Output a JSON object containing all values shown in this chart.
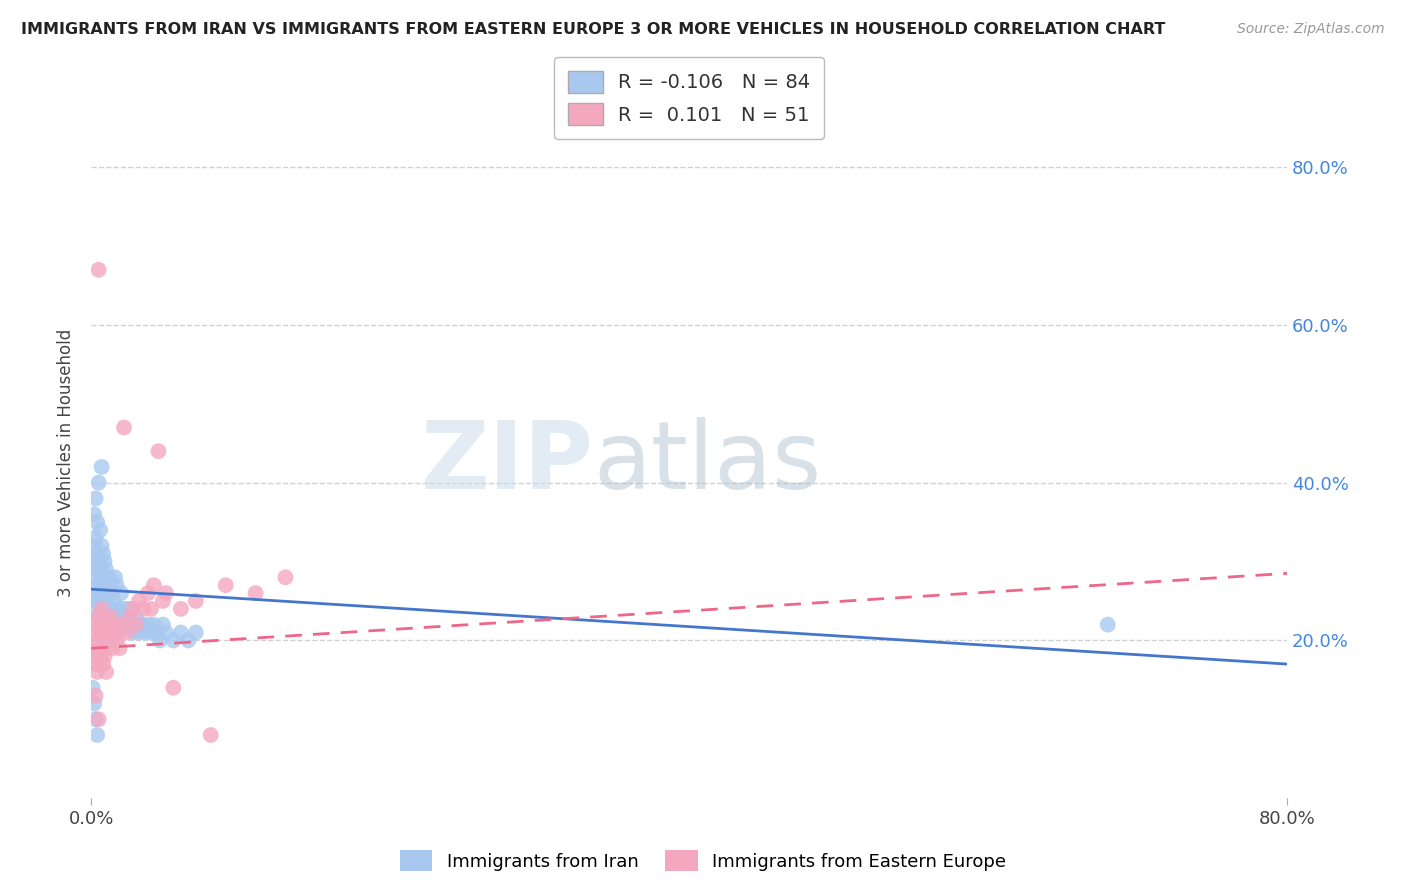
{
  "title": "IMMIGRANTS FROM IRAN VS IMMIGRANTS FROM EASTERN EUROPE 3 OR MORE VEHICLES IN HOUSEHOLD CORRELATION CHART",
  "source": "Source: ZipAtlas.com",
  "ylabel": "3 or more Vehicles in Household",
  "legend_R1": "-0.106",
  "legend_N1": "84",
  "legend_R2": "0.101",
  "legend_N2": "51",
  "color_iran": "#A8C8F0",
  "color_east": "#F4A8C0",
  "color_iran_line": "#4477CC",
  "color_east_line": "#EE6688",
  "watermark_zip": "ZIP",
  "watermark_atlas": "atlas",
  "background_color": "#FFFFFF",
  "x_range": [
    0.0,
    0.8
  ],
  "y_range": [
    0.0,
    0.85
  ],
  "iran_x": [
    0.001,
    0.001,
    0.002,
    0.002,
    0.002,
    0.003,
    0.003,
    0.003,
    0.003,
    0.004,
    0.004,
    0.004,
    0.004,
    0.005,
    0.005,
    0.005,
    0.005,
    0.006,
    0.006,
    0.006,
    0.006,
    0.007,
    0.007,
    0.007,
    0.007,
    0.007,
    0.008,
    0.008,
    0.008,
    0.008,
    0.009,
    0.009,
    0.009,
    0.009,
    0.01,
    0.01,
    0.01,
    0.011,
    0.011,
    0.012,
    0.012,
    0.013,
    0.013,
    0.014,
    0.014,
    0.015,
    0.015,
    0.016,
    0.016,
    0.017,
    0.017,
    0.018,
    0.019,
    0.02,
    0.02,
    0.021,
    0.022,
    0.023,
    0.024,
    0.025,
    0.026,
    0.027,
    0.028,
    0.03,
    0.031,
    0.032,
    0.034,
    0.036,
    0.038,
    0.04,
    0.042,
    0.044,
    0.046,
    0.048,
    0.05,
    0.055,
    0.06,
    0.065,
    0.07,
    0.68,
    0.001,
    0.002,
    0.003,
    0.004
  ],
  "iran_y": [
    0.26,
    0.3,
    0.28,
    0.32,
    0.36,
    0.25,
    0.29,
    0.33,
    0.38,
    0.24,
    0.27,
    0.31,
    0.35,
    0.23,
    0.26,
    0.3,
    0.4,
    0.22,
    0.25,
    0.29,
    0.34,
    0.21,
    0.24,
    0.28,
    0.32,
    0.42,
    0.2,
    0.23,
    0.27,
    0.31,
    0.19,
    0.22,
    0.26,
    0.3,
    0.21,
    0.25,
    0.29,
    0.22,
    0.26,
    0.24,
    0.28,
    0.23,
    0.27,
    0.22,
    0.26,
    0.21,
    0.25,
    0.24,
    0.28,
    0.23,
    0.27,
    0.22,
    0.24,
    0.23,
    0.26,
    0.22,
    0.24,
    0.23,
    0.22,
    0.24,
    0.23,
    0.22,
    0.21,
    0.23,
    0.22,
    0.21,
    0.22,
    0.21,
    0.22,
    0.21,
    0.22,
    0.21,
    0.2,
    0.22,
    0.21,
    0.2,
    0.21,
    0.2,
    0.21,
    0.22,
    0.14,
    0.12,
    0.1,
    0.08
  ],
  "east_x": [
    0.001,
    0.002,
    0.002,
    0.003,
    0.003,
    0.004,
    0.004,
    0.005,
    0.005,
    0.006,
    0.006,
    0.007,
    0.007,
    0.008,
    0.008,
    0.009,
    0.009,
    0.01,
    0.01,
    0.011,
    0.012,
    0.013,
    0.014,
    0.015,
    0.016,
    0.017,
    0.018,
    0.019,
    0.02,
    0.022,
    0.024,
    0.026,
    0.028,
    0.03,
    0.032,
    0.035,
    0.038,
    0.04,
    0.042,
    0.045,
    0.048,
    0.05,
    0.055,
    0.06,
    0.07,
    0.08,
    0.09,
    0.11,
    0.13,
    0.003,
    0.005
  ],
  "east_y": [
    0.19,
    0.21,
    0.18,
    0.22,
    0.17,
    0.2,
    0.16,
    0.23,
    0.67,
    0.21,
    0.18,
    0.24,
    0.19,
    0.22,
    0.17,
    0.23,
    0.18,
    0.21,
    0.16,
    0.22,
    0.2,
    0.23,
    0.19,
    0.21,
    0.22,
    0.2,
    0.21,
    0.19,
    0.22,
    0.47,
    0.21,
    0.23,
    0.24,
    0.22,
    0.25,
    0.24,
    0.26,
    0.24,
    0.27,
    0.44,
    0.25,
    0.26,
    0.14,
    0.24,
    0.25,
    0.08,
    0.27,
    0.26,
    0.28,
    0.13,
    0.1
  ]
}
